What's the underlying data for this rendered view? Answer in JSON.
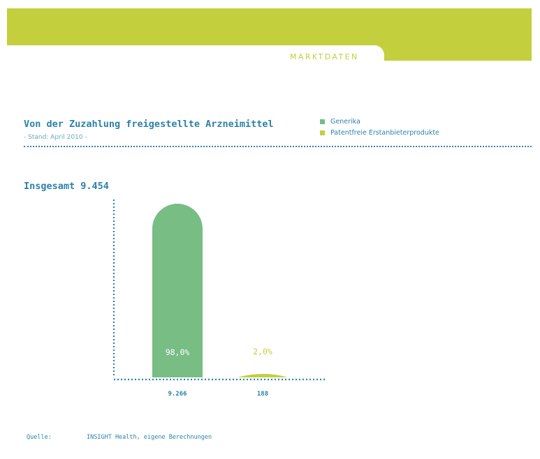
{
  "header": {
    "tab_label": "MARKTDATEN"
  },
  "colors": {
    "header_green": "#c3cf3c",
    "generika": "#77bd84",
    "patentfrei": "#c3cf3c",
    "text_blue": "#2d82a8"
  },
  "chart_data": {
    "type": "bar",
    "title": "Von der Zuzahlung freigestellte Arzneimittel",
    "subtitle": "- Stand: April 2010 -",
    "total_label": "Insgesamt 9.454",
    "categories": [
      "9.266",
      "188"
    ],
    "values": [
      9266,
      188
    ],
    "percent_labels": [
      "98,0%",
      "2,0%"
    ],
    "series_names": [
      "Generika",
      "Patentfreie Erstanbieterprodukte"
    ],
    "series_colors": [
      "#77bd84",
      "#c3cf3c"
    ],
    "ylim": [
      0,
      9266
    ],
    "xlabel": "",
    "ylabel": "",
    "grid": false,
    "legend_position": "top-right"
  },
  "footer": {
    "source_label": "Quelle:",
    "source_text": "INSIGHT Health, eigene Berechnungen"
  }
}
